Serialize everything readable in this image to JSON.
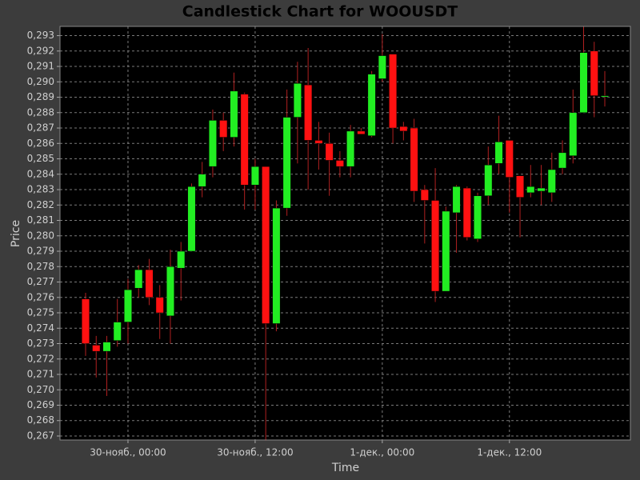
{
  "chart_data": {
    "type": "candlestick",
    "title": "Candlestick Chart for WOOUSDT",
    "x_label": "Time",
    "y_label": "Price",
    "categories": [
      null,
      null,
      null,
      null,
      "30-нояб., 00:00",
      null,
      null,
      null,
      null,
      null,
      null,
      null,
      null,
      null,
      null,
      null,
      "30-нояб., 12:00",
      null,
      null,
      null,
      null,
      null,
      null,
      null,
      null,
      null,
      null,
      null,
      "1-дек., 00:00",
      null,
      null,
      null,
      null,
      null,
      null,
      null,
      null,
      null,
      null,
      null,
      "1-дек., 12:00",
      null,
      null,
      null,
      null,
      null,
      null,
      null,
      null,
      null
    ],
    "open": [
      0.2759,
      0.2729,
      0.2725,
      0.2732,
      0.2744,
      0.2766,
      0.2778,
      0.276,
      0.2748,
      0.2779,
      0.279,
      0.2832,
      0.2845,
      0.2875,
      0.2864,
      0.2892,
      0.2833,
      0.2845,
      0.2743,
      0.2818,
      0.2877,
      0.2898,
      0.2862,
      0.286,
      0.2849,
      0.2845,
      0.2868,
      0.2865,
      0.2902,
      0.2918,
      0.2871,
      0.287,
      0.283,
      0.2823,
      0.2764,
      0.2815,
      0.2831,
      0.2798,
      0.2826,
      0.2847,
      0.2862,
      0.2839,
      0.2828,
      0.2829,
      0.2828,
      0.2844,
      0.2852,
      0.288,
      0.292,
      0.2891
    ],
    "high": [
      0.2763,
      0.2735,
      0.2735,
      0.2759,
      0.2772,
      0.2781,
      0.2785,
      0.2768,
      0.2791,
      0.2796,
      0.2834,
      0.2848,
      0.2882,
      0.288,
      0.2906,
      0.2893,
      0.285,
      0.2845,
      0.2823,
      0.2895,
      0.2913,
      0.2922,
      0.2874,
      0.2867,
      0.2855,
      0.2872,
      0.287,
      0.2907,
      0.2931,
      0.2918,
      0.2874,
      0.2876,
      0.2833,
      0.2844,
      0.2819,
      0.2833,
      0.2832,
      0.2828,
      0.2858,
      0.2878,
      0.2862,
      0.2839,
      0.2846,
      0.2846,
      0.2854,
      0.2862,
      0.2895,
      0.2936,
      0.2926,
      0.2907
    ],
    "low": [
      0.2722,
      0.2708,
      0.2696,
      0.2728,
      0.273,
      0.276,
      0.2755,
      0.2733,
      0.273,
      0.2758,
      0.279,
      0.2825,
      0.2838,
      0.2855,
      0.2858,
      0.2817,
      0.2817,
      0.2667,
      0.2738,
      0.2813,
      0.2847,
      0.283,
      0.2843,
      0.2826,
      0.2838,
      0.2838,
      0.2866,
      0.2864,
      0.29,
      0.286,
      0.2862,
      0.2822,
      0.2795,
      0.2757,
      0.2764,
      0.2789,
      0.2797,
      0.2796,
      0.282,
      0.284,
      0.2815,
      0.2799,
      0.2825,
      0.282,
      0.2822,
      0.284,
      0.2847,
      0.288,
      0.2877,
      0.2884
    ],
    "close": [
      0.273,
      0.2725,
      0.2731,
      0.2744,
      0.2765,
      0.2778,
      0.276,
      0.275,
      0.278,
      0.279,
      0.2832,
      0.284,
      0.2875,
      0.2864,
      0.2894,
      0.2833,
      0.2845,
      0.2743,
      0.2818,
      0.2877,
      0.2899,
      0.2862,
      0.286,
      0.2849,
      0.2845,
      0.2868,
      0.2866,
      0.2905,
      0.2917,
      0.287,
      0.2868,
      0.2829,
      0.2823,
      0.2764,
      0.2816,
      0.2832,
      0.2799,
      0.2826,
      0.2846,
      0.2861,
      0.2838,
      0.2825,
      0.2832,
      0.2831,
      0.2843,
      0.2854,
      0.288,
      0.2919,
      0.2891,
      0.2891
    ],
    "up_color": "#22ee22",
    "down_color": "#ff1111",
    "wick_color": "#b02020",
    "ylim": [
      0.26674,
      0.2936
    ],
    "yticks": [
      {
        "value": 0.267,
        "label": "0,267"
      },
      {
        "value": 0.268,
        "label": "0,268"
      },
      {
        "value": 0.269,
        "label": "0,269"
      },
      {
        "value": 0.27,
        "label": "0,270"
      },
      {
        "value": 0.271,
        "label": "0,271"
      },
      {
        "value": 0.272,
        "label": "0,272"
      },
      {
        "value": 0.273,
        "label": "0,273"
      },
      {
        "value": 0.274,
        "label": "0,274"
      },
      {
        "value": 0.275,
        "label": "0,275"
      },
      {
        "value": 0.276,
        "label": "0,276"
      },
      {
        "value": 0.277,
        "label": "0,277"
      },
      {
        "value": 0.278,
        "label": "0,278"
      },
      {
        "value": 0.279,
        "label": "0,279"
      },
      {
        "value": 0.28,
        "label": "0,280"
      },
      {
        "value": 0.281,
        "label": "0,281"
      },
      {
        "value": 0.282,
        "label": "0,282"
      },
      {
        "value": 0.283,
        "label": "0,283"
      },
      {
        "value": 0.284,
        "label": "0,284"
      },
      {
        "value": 0.285,
        "label": "0,285"
      },
      {
        "value": 0.286,
        "label": "0,286"
      },
      {
        "value": 0.287,
        "label": "0,287"
      },
      {
        "value": 0.288,
        "label": "0,288"
      },
      {
        "value": 0.289,
        "label": "0,289"
      },
      {
        "value": 0.29,
        "label": "0,290"
      },
      {
        "value": 0.291,
        "label": "0,291"
      },
      {
        "value": 0.292,
        "label": "0,292"
      },
      {
        "value": 0.293,
        "label": "0,293"
      }
    ],
    "grid": true
  }
}
